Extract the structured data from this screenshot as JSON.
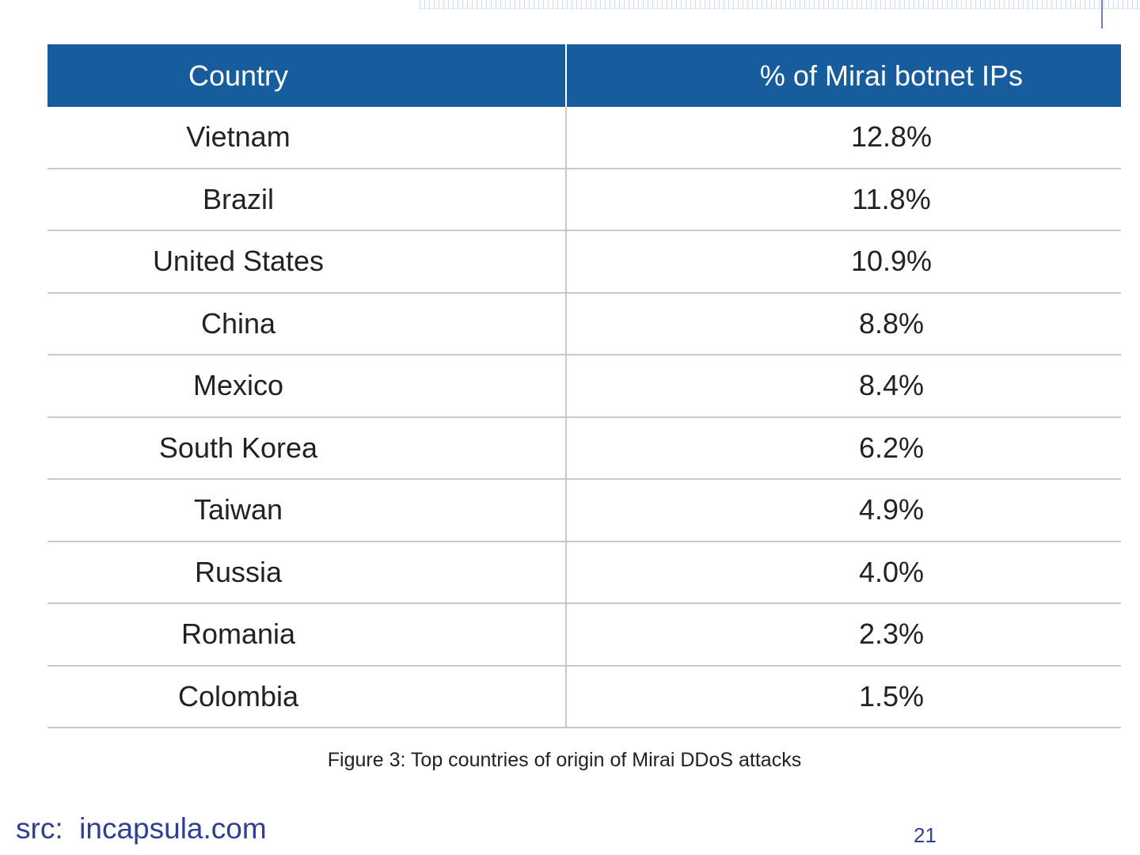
{
  "chart_data": {
    "type": "table",
    "columns": [
      "Country",
      "% of Mirai botnet IPs"
    ],
    "rows": [
      {
        "country": "Vietnam",
        "value": "12.8%"
      },
      {
        "country": "Brazil",
        "value": "11.8%"
      },
      {
        "country": "United States",
        "value": "10.9%"
      },
      {
        "country": "China",
        "value": "8.8%"
      },
      {
        "country": "Mexico",
        "value": "8.4%"
      },
      {
        "country": "South Korea",
        "value": "6.2%"
      },
      {
        "country": "Taiwan",
        "value": "4.9%"
      },
      {
        "country": "Russia",
        "value": "4.0%"
      },
      {
        "country": "Romania",
        "value": "2.3%"
      },
      {
        "country": "Colombia",
        "value": "1.5%"
      }
    ],
    "caption": "Figure 3: Top countries of origin of Mirai DDoS attacks"
  },
  "footer": {
    "source": "src:  incapsula.com",
    "page_number": "21"
  },
  "colors": {
    "header_bg": "#175c9c",
    "header_text": "#ffffff",
    "footer_text": "#2f3f94"
  }
}
